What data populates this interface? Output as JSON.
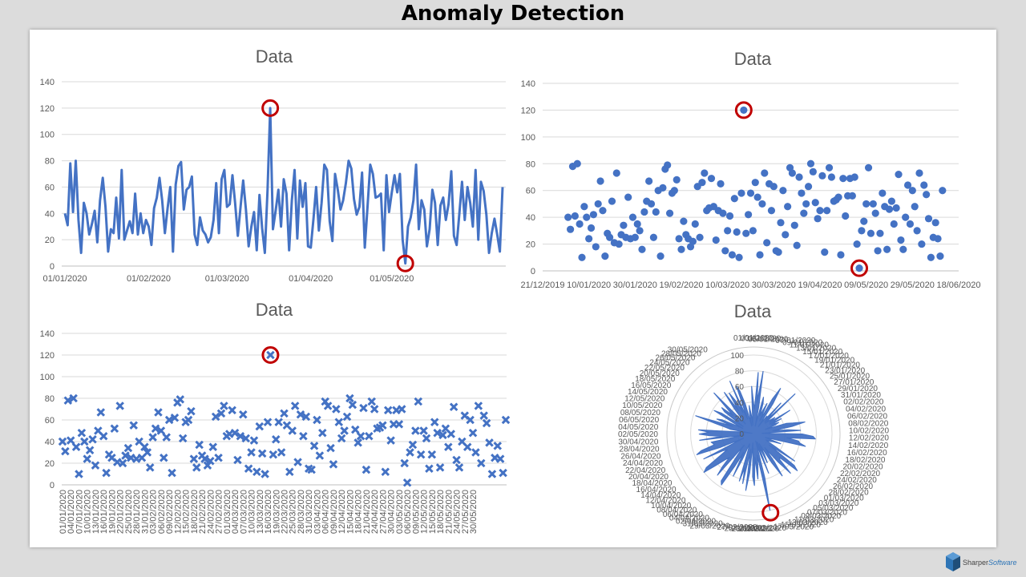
{
  "page_title": "Anomaly Detection",
  "logo": {
    "text": "Sharper",
    "text_accent": "Software"
  },
  "colors": {
    "series": "#4472c4",
    "anomaly": "#c00000",
    "grid": "#d9d9d9",
    "text": "#595959"
  },
  "chart_data": [
    {
      "type": "line",
      "title": "Data",
      "start_date": "01/01/2020",
      "ylim": [
        0,
        140
      ],
      "yticks": [
        0,
        20,
        40,
        60,
        80,
        100,
        120,
        140
      ],
      "xticks": [
        {
          "label": "01/01/2020",
          "index": 0
        },
        {
          "label": "01/02/2020",
          "index": 31
        },
        {
          "label": "01/03/2020",
          "index": 60
        },
        {
          "label": "01/04/2020",
          "index": 91
        },
        {
          "label": "01/05/2020",
          "index": 121
        }
      ],
      "grid": true,
      "anomalies": [
        76,
        126
      ],
      "values": [
        40,
        31,
        78,
        41,
        80,
        35,
        10,
        48,
        40,
        24,
        32,
        42,
        18,
        50,
        67,
        45,
        11,
        28,
        25,
        52,
        21,
        73,
        20,
        27,
        34,
        25,
        55,
        24,
        40,
        25,
        35,
        30,
        16,
        44,
        52,
        67,
        50,
        25,
        44,
        60,
        11,
        62,
        76,
        79,
        43,
        58,
        60,
        68,
        24,
        16,
        37,
        27,
        24,
        18,
        22,
        35,
        63,
        25,
        66,
        73,
        45,
        47,
        69,
        48,
        23,
        45,
        65,
        43,
        15,
        30,
        41,
        12,
        54,
        29,
        10,
        58,
        120,
        28,
        42,
        58,
        30,
        66,
        55,
        12,
        50,
        73,
        21,
        65,
        45,
        63,
        15,
        14,
        36,
        60,
        27,
        48,
        77,
        73,
        34,
        19,
        70,
        58,
        43,
        50,
        63,
        80,
        74,
        51,
        39,
        45,
        71,
        14,
        45,
        77,
        70,
        52,
        53,
        55,
        12,
        69,
        41,
        56,
        69,
        56,
        70,
        20,
        2,
        30,
        37,
        50,
        77,
        28,
        50,
        43,
        15,
        28,
        58,
        48,
        16,
        46,
        52,
        35,
        47,
        72,
        23,
        16,
        40,
        64,
        35,
        60,
        48,
        30,
        73,
        20,
        64,
        57,
        39,
        10,
        25,
        36,
        24,
        11,
        60
      ]
    },
    {
      "type": "scatter",
      "title": "Data",
      "ylim": [
        0,
        140
      ],
      "yticks": [
        0,
        20,
        40,
        60,
        80,
        100,
        120,
        140
      ],
      "xticks": [
        "21/12/2019",
        "10/01/2020",
        "30/01/2020",
        "19/02/2020",
        "10/03/2020",
        "30/03/2020",
        "19/04/2020",
        "09/05/2020",
        "29/05/2020",
        "18/06/2020"
      ],
      "grid": true,
      "anomalies": [
        76,
        126
      ],
      "values_ref": "same as line chart"
    },
    {
      "type": "scatter",
      "marker": "x",
      "title": "Data",
      "ylim": [
        0,
        140
      ],
      "yticks": [
        0,
        20,
        40,
        60,
        80,
        100,
        120,
        140
      ],
      "xticks": [
        "01/01/2020",
        "04/01/2020",
        "07/01/2020",
        "10/01/2020",
        "13/01/2020",
        "16/01/2020",
        "19/01/2020",
        "22/01/2020",
        "25/01/2020",
        "28/01/2020",
        "31/01/2020",
        "03/02/2020",
        "06/02/2020",
        "09/02/2020",
        "12/02/2020",
        "15/02/2020",
        "18/02/2020",
        "21/02/2020",
        "24/02/2020",
        "27/02/2020",
        "01/03/2020",
        "04/03/2020",
        "07/03/2020",
        "10/03/2020",
        "13/03/2020",
        "16/03/2020",
        "19/03/2020",
        "22/03/2020",
        "25/03/2020",
        "28/03/2020",
        "31/03/2020",
        "03/04/2020",
        "06/04/2020",
        "09/04/2020",
        "12/04/2020",
        "15/04/2020",
        "18/04/2020",
        "21/04/2020",
        "24/04/2020",
        "27/04/2020",
        "30/04/2020",
        "03/05/2020",
        "06/05/2020",
        "09/05/2020",
        "12/05/2020",
        "15/05/2020",
        "18/05/2020",
        "21/05/2020",
        "24/05/2020",
        "27/05/2020",
        "30/05/2020"
      ],
      "grid": true,
      "anomalies": [
        76
      ],
      "values_ref": "same as line chart"
    },
    {
      "type": "radar",
      "title": "Data",
      "rlim": [
        0,
        100
      ],
      "rticks": [
        0,
        20,
        40,
        60,
        80,
        100
      ],
      "category_labels": [
        "01/01/2020",
        "03/01/2020",
        "05/01/2020",
        "07/01/2020",
        "09/01/2020",
        "11/01/2020",
        "13/01/2020",
        "15/01/2020",
        "17/01/2020",
        "19/01/2020",
        "21/01/2020",
        "23/01/2020",
        "25/01/2020",
        "27/01/2020",
        "29/01/2020",
        "31/01/2020",
        "02/02/2020",
        "04/02/2020",
        "06/02/2020",
        "08/02/2020",
        "10/02/2020",
        "12/02/2020",
        "14/02/2020",
        "16/02/2020",
        "18/02/2020",
        "20/02/2020",
        "22/02/2020",
        "24/02/2020",
        "26/02/2020",
        "28/02/2020",
        "01/03/2020",
        "03/03/2020",
        "05/03/2020",
        "07/03/2020",
        "09/03/2020",
        "11/03/2020",
        "13/03/2020",
        "15/03/2020",
        "17/03/2020",
        "19/03/2020",
        "21/03/2020",
        "23/03/2020",
        "25/03/2020",
        "27/03/2020",
        "29/03/2020",
        "31/03/2020",
        "02/04/2020",
        "04/04/2020",
        "06/04/2020",
        "08/04/2020",
        "10/04/2020",
        "12/04/2020",
        "14/04/2020",
        "16/04/2020",
        "18/04/2020",
        "20/04/2020",
        "22/04/2020",
        "24/04/2020",
        "26/04/2020",
        "28/04/2020",
        "30/04/2020",
        "02/05/2020",
        "04/05/2020",
        "06/05/2020",
        "08/05/2020",
        "10/05/2020",
        "12/05/2020",
        "14/05/2020",
        "16/05/2020",
        "18/05/2020",
        "20/05/2020",
        "22/05/2020",
        "24/05/2020",
        "26/05/2020",
        "28/05/2020",
        "30/05/2020"
      ],
      "anomalies": [
        76
      ],
      "values_ref": "same as line chart"
    }
  ]
}
